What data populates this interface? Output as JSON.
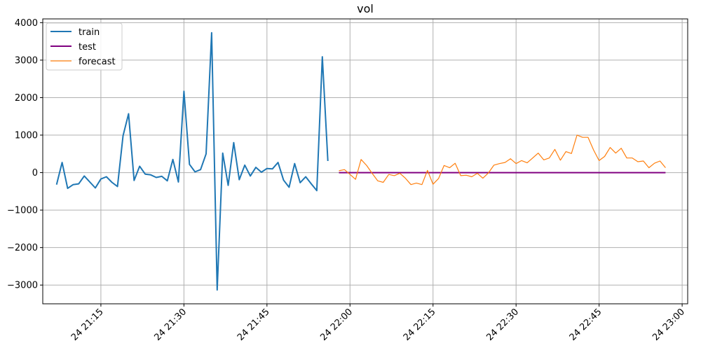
{
  "chart_data": {
    "type": "line",
    "title": "vol",
    "xlabel": "",
    "ylabel": "",
    "grid": true,
    "legend_position": "top-left",
    "x_unit": "time",
    "xlim": [
      "24 21:04:30",
      "24 23:01:00"
    ],
    "ylim": [
      -3500,
      4100
    ],
    "x_tick_labels": [
      "24 21:15",
      "24 21:30",
      "24 21:45",
      "24 22:00",
      "24 22:15",
      "24 22:30",
      "24 22:45",
      "24 23:00"
    ],
    "y_tick_labels": [
      "4000",
      "3000",
      "2000",
      "1000",
      "0",
      "−1000",
      "−2000",
      "−3000"
    ],
    "y_ticks": [
      4000,
      3000,
      2000,
      1000,
      0,
      -1000,
      -2000,
      -3000
    ],
    "series": [
      {
        "name": "train",
        "color": "#1f77b4",
        "x": [
          "24 21:07",
          "24 21:08",
          "24 21:09",
          "24 21:10",
          "24 21:11",
          "24 21:12",
          "24 21:13",
          "24 21:14",
          "24 21:15",
          "24 21:16",
          "24 21:17",
          "24 21:18",
          "24 21:19",
          "24 21:20",
          "24 21:21",
          "24 21:22",
          "24 21:23",
          "24 21:24",
          "24 21:25",
          "24 21:26",
          "24 21:27",
          "24 21:28",
          "24 21:29",
          "24 21:30",
          "24 21:31",
          "24 21:32",
          "24 21:33",
          "24 21:34",
          "24 21:35",
          "24 21:36",
          "24 21:37",
          "24 21:38",
          "24 21:39",
          "24 21:40",
          "24 21:41",
          "24 21:42",
          "24 21:43",
          "24 21:44",
          "24 21:45",
          "24 21:46",
          "24 21:47",
          "24 21:48",
          "24 21:49",
          "24 21:50",
          "24 21:51",
          "24 21:52",
          "24 21:53",
          "24 21:54",
          "24 21:55",
          "24 21:56",
          "24 21:57"
        ],
        "values": [
          -320,
          270,
          -420,
          -320,
          -300,
          -90,
          -250,
          -410,
          -170,
          -110,
          -260,
          -370,
          980,
          1570,
          -210,
          170,
          -40,
          -60,
          -130,
          -100,
          -220,
          350,
          -250,
          2170,
          220,
          20,
          80,
          500,
          3730,
          -3130,
          520,
          -340,
          800,
          -190,
          200,
          -90,
          140,
          10,
          110,
          100,
          270,
          -200,
          -390,
          240,
          -270,
          -110,
          -300,
          -480,
          3090,
          310,
          null
        ]
      },
      {
        "name": "test",
        "color": "#800080",
        "x": [
          "24 21:58",
          "24 22:57"
        ],
        "values": [
          0,
          0
        ]
      },
      {
        "name": "forecast",
        "color": "#ff7f0e",
        "x": [
          "24 21:58",
          "24 21:59",
          "24 22:00",
          "24 22:01",
          "24 22:02",
          "24 22:03",
          "24 22:04",
          "24 22:05",
          "24 22:06",
          "24 22:07",
          "24 22:08",
          "24 22:09",
          "24 22:10",
          "24 22:11",
          "24 22:12",
          "24 22:13",
          "24 22:14",
          "24 22:15",
          "24 22:16",
          "24 22:17",
          "24 22:18",
          "24 22:19",
          "24 22:20",
          "24 22:21",
          "24 22:22",
          "24 22:23",
          "24 22:24",
          "24 22:25",
          "24 22:26",
          "24 22:27",
          "24 22:28",
          "24 22:29",
          "24 22:30",
          "24 22:31",
          "24 22:32",
          "24 22:33",
          "24 22:34",
          "24 22:35",
          "24 22:36",
          "24 22:37",
          "24 22:38",
          "24 22:39",
          "24 22:40",
          "24 22:41",
          "24 22:42",
          "24 22:43",
          "24 22:44",
          "24 22:45",
          "24 22:46",
          "24 22:47",
          "24 22:48",
          "24 22:49",
          "24 22:50",
          "24 22:51",
          "24 22:52",
          "24 22:53",
          "24 22:54",
          "24 22:55",
          "24 22:56",
          "24 22:57"
        ],
        "values": [
          50,
          80,
          -50,
          -180,
          350,
          190,
          -20,
          -220,
          -260,
          -50,
          -80,
          -20,
          -150,
          -320,
          -280,
          -320,
          60,
          -310,
          -160,
          190,
          130,
          250,
          -80,
          -70,
          -110,
          -20,
          -150,
          -10,
          200,
          240,
          270,
          370,
          240,
          320,
          260,
          390,
          520,
          340,
          390,
          620,
          330,
          560,
          510,
          1000,
          940,
          940,
          600,
          320,
          430,
          670,
          520,
          650,
          390,
          390,
          290,
          310,
          130,
          250,
          310,
          130
        ]
      }
    ]
  }
}
